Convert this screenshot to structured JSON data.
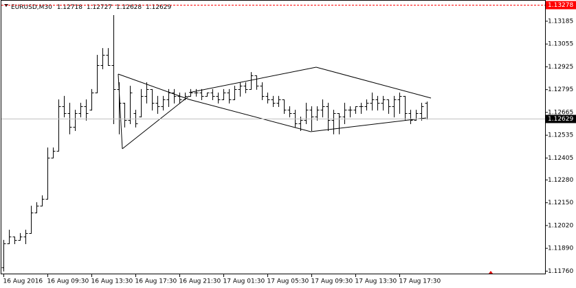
{
  "chart_data": {
    "type": "ohlc",
    "title": "EURUSD,M30",
    "categories": [
      "16 Aug 2016",
      null,
      null,
      null,
      null,
      null,
      null,
      null,
      "16 Aug 09:30",
      null,
      null,
      null,
      null,
      null,
      null,
      null,
      "16 Aug 13:30",
      null,
      null,
      null,
      null,
      null,
      null,
      null,
      "16 Aug 17:30",
      null,
      null,
      null,
      null,
      null,
      null,
      null,
      "16 Aug 21:30",
      null,
      null,
      null,
      null,
      null,
      null,
      null,
      "17 Aug 01:30",
      null,
      null,
      null,
      null,
      null,
      null,
      null,
      "17 Aug 05:30",
      null,
      null,
      null,
      null,
      null,
      null,
      null,
      "17 Aug 09:30",
      null,
      null,
      null,
      null,
      null,
      null,
      null,
      "17 Aug 13:30",
      null,
      null,
      null,
      null,
      null,
      null,
      null,
      "17 Aug 17:30",
      null,
      null,
      null,
      null,
      null
    ],
    "open": [
      1.11781,
      1.11918,
      1.11957,
      1.11938,
      1.11957,
      1.11977,
      1.12094,
      1.12133,
      1.12172,
      1.12407,
      1.12446,
      1.127,
      1.12661,
      1.12583,
      1.12661,
      1.127,
      1.1268,
      1.12778,
      1.12935,
      1.12993,
      1.12935,
      1.12798,
      1.1272,
      1.12622,
      1.12661,
      1.12641,
      1.12759,
      1.12798,
      1.1272,
      1.127,
      1.12739,
      1.12778,
      1.12759,
      1.12739,
      1.12759,
      1.12778,
      1.12778,
      1.12759,
      1.12778,
      1.12759,
      1.12739,
      1.12778,
      1.12739,
      1.12798,
      1.12817,
      1.12798,
      1.12876,
      1.12817,
      1.12759,
      1.12739,
      1.1272,
      1.12739,
      1.1268,
      1.12661,
      1.12602,
      1.12622,
      1.1268,
      1.12641,
      1.1268,
      1.127,
      1.12622,
      1.12661,
      1.12641,
      1.1268,
      1.1268,
      1.127,
      1.127,
      1.1272,
      1.12739,
      1.1272,
      1.12739,
      1.127,
      1.12739,
      1.12759,
      1.12661,
      1.12622,
      1.12661,
      1.12718
    ],
    "high": [
      1.11938,
      1.11996,
      1.11957,
      1.11977,
      1.11996,
      1.12133,
      1.12153,
      1.12192,
      1.12465,
      1.12465,
      1.12739,
      1.12759,
      1.1272,
      1.1268,
      1.1272,
      1.12739,
      1.12798,
      1.12993,
      1.13032,
      1.13032,
      1.1322,
      1.12837,
      1.1272,
      1.12817,
      1.1268,
      1.12798,
      1.12837,
      1.12798,
      1.12759,
      1.12759,
      1.12798,
      1.12798,
      1.12778,
      1.12778,
      1.12798,
      1.12798,
      1.12798,
      1.12778,
      1.12798,
      1.12778,
      1.12798,
      1.12798,
      1.12817,
      1.12837,
      1.12837,
      1.12895,
      1.12876,
      1.12837,
      1.12778,
      1.12759,
      1.12759,
      1.12739,
      1.127,
      1.1268,
      1.12641,
      1.1272,
      1.127,
      1.127,
      1.12739,
      1.1272,
      1.1268,
      1.12661,
      1.1272,
      1.127,
      1.127,
      1.1272,
      1.12739,
      1.12778,
      1.12759,
      1.12759,
      1.12739,
      1.12759,
      1.12778,
      1.12759,
      1.1268,
      1.1268,
      1.1272,
      1.12727
    ],
    "low": [
      1.11762,
      1.11918,
      1.11918,
      1.11938,
      1.11918,
      1.11977,
      1.12094,
      1.12133,
      1.12172,
      1.12407,
      1.12446,
      1.12641,
      1.12544,
      1.12563,
      1.12641,
      1.12622,
      1.1268,
      1.12778,
      1.12915,
      1.12935,
      1.12602,
      1.12544,
      1.12583,
      1.12602,
      1.12583,
      1.12641,
      1.1272,
      1.1268,
      1.12661,
      1.1268,
      1.127,
      1.1272,
      1.1272,
      1.12739,
      1.12759,
      1.12759,
      1.12739,
      1.12759,
      1.12739,
      1.1272,
      1.12739,
      1.1272,
      1.12739,
      1.12759,
      1.12778,
      1.12798,
      1.12798,
      1.12739,
      1.1272,
      1.127,
      1.127,
      1.12661,
      1.12641,
      1.12583,
      1.12563,
      1.12602,
      1.12563,
      1.12622,
      1.12641,
      1.12563,
      1.12544,
      1.12544,
      1.12602,
      1.12641,
      1.12661,
      1.12661,
      1.1268,
      1.1268,
      1.1268,
      1.1268,
      1.12661,
      1.12641,
      1.12661,
      1.12622,
      1.12602,
      1.12622,
      1.12622,
      1.12628
    ],
    "close": [
      1.11918,
      1.11957,
      1.11938,
      1.11957,
      1.11977,
      1.12094,
      1.12133,
      1.12172,
      1.12407,
      1.12446,
      1.127,
      1.12661,
      1.12583,
      1.12661,
      1.127,
      1.12661,
      1.12778,
      1.12935,
      1.12993,
      1.12935,
      1.12798,
      1.1272,
      1.12622,
      1.12778,
      1.12602,
      1.12759,
      1.12798,
      1.1272,
      1.127,
      1.12739,
      1.12778,
      1.12759,
      1.12739,
      1.12759,
      1.12778,
      1.12778,
      1.12759,
      1.12778,
      1.12759,
      1.12739,
      1.12778,
      1.12739,
      1.12798,
      1.12817,
      1.12798,
      1.12876,
      1.12817,
      1.12759,
      1.12739,
      1.1272,
      1.12739,
      1.1268,
      1.12661,
      1.12602,
      1.12622,
      1.1268,
      1.12641,
      1.1268,
      1.127,
      1.12622,
      1.12661,
      1.12641,
      1.1268,
      1.1268,
      1.127,
      1.127,
      1.1272,
      1.12739,
      1.1272,
      1.12739,
      1.127,
      1.12739,
      1.12759,
      1.12661,
      1.12622,
      1.12661,
      1.127,
      1.12629
    ],
    "color": "#000000",
    "ylim": [
      1.11742,
      1.13306
    ],
    "yticks": [
      1.13185,
      1.13055,
      1.12925,
      1.12795,
      1.12665,
      1.12535,
      1.12405,
      {
        "value": 1.1228,
        "label": "1.12280"
      },
      {
        "value": 1.1215,
        "label": "1.12150"
      },
      {
        "value": 1.1202,
        "label": "1.12020"
      },
      {
        "value": 1.1189,
        "label": "1.11890"
      },
      {
        "value": 1.1176,
        "label": "1.11760"
      }
    ],
    "price_lines": [
      {
        "value": 1.13278,
        "color": "#ff0000"
      },
      {
        "value": 1.12629,
        "color": "#000000"
      }
    ]
  }
}
